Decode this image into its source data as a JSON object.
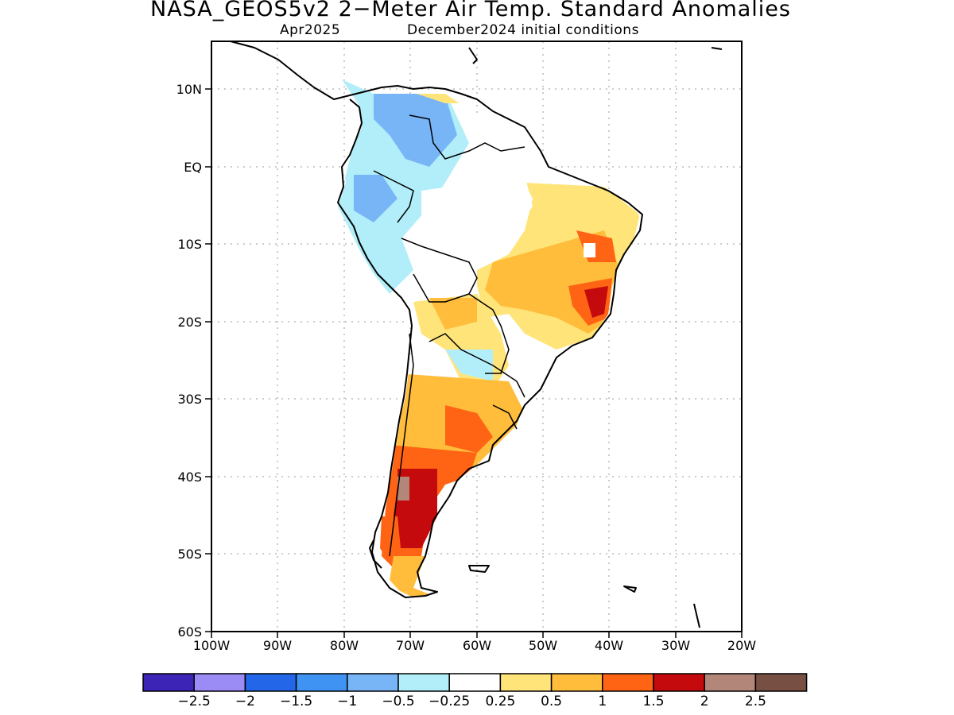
{
  "title": "NASA_GEOS5v2 2−Meter Air Temp. Standard Anomalies",
  "subtitle_left": "Apr2025",
  "subtitle_right": "December2024 initial conditions",
  "lat_labels": [
    "10N",
    "EQ",
    "10S",
    "20S",
    "30S",
    "40S",
    "50S",
    "60S"
  ],
  "lon_labels": [
    "100W",
    "90W",
    "80W",
    "70W",
    "60W",
    "50W",
    "40W",
    "30W",
    "20W"
  ],
  "colorbar": {
    "colors": [
      "#3b24b6",
      "#9b8cf5",
      "#2366e8",
      "#3f93f2",
      "#78b5f7",
      "#b2eef9",
      "#ffffff",
      "#ffe47a",
      "#ffbd3b",
      "#ff6414",
      "#c40a0c",
      "#b3867a",
      "#774f43"
    ],
    "labels": [
      "−2.5",
      "−2",
      "−1.5",
      "−1",
      "−0.5",
      "−0.25",
      "0.25",
      "0.5",
      "1",
      "1.5",
      "2",
      "2.5"
    ]
  }
}
